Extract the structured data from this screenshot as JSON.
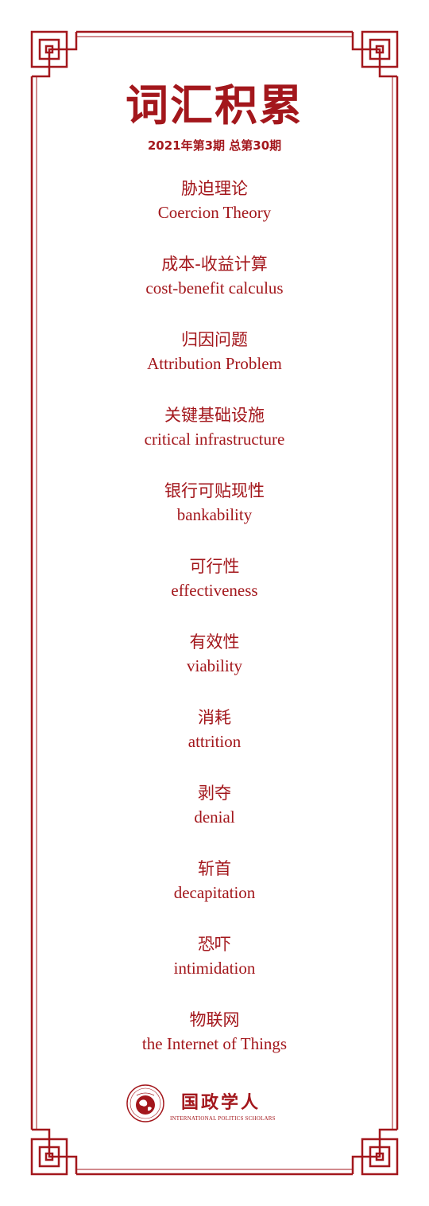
{
  "header": {
    "title": "词汇积累",
    "issue": "2021年第3期 总第30期"
  },
  "terms": [
    {
      "zh": "胁迫理论",
      "en": "Coercion Theory"
    },
    {
      "zh": "成本-收益计算",
      "en": "cost-benefit calculus"
    },
    {
      "zh": "归因问题",
      "en": "Attribution Problem"
    },
    {
      "zh": "关键基础设施",
      "en": "critical infrastructure"
    },
    {
      "zh": "银行可贴现性",
      "en": "bankability"
    },
    {
      "zh": "可行性",
      "en": "effectiveness"
    },
    {
      "zh": "有效性",
      "en": "viability"
    },
    {
      "zh": "消耗",
      "en": "attrition"
    },
    {
      "zh": "剥夺",
      "en": "denial"
    },
    {
      "zh": "斩首",
      "en": "decapitation"
    },
    {
      "zh": "恐吓",
      "en": "intimidation"
    },
    {
      "zh": "物联网",
      "en": "the Internet of Things"
    }
  ],
  "footer": {
    "logo_name": "国政学人",
    "logo_subtitle": "INTERNATIONAL POLITICS SCHOLARS"
  },
  "colors": {
    "accent": "#a3171c"
  },
  "icons": {
    "logo": "globe-seal-icon",
    "frame": "chinese-fretwork-border"
  }
}
